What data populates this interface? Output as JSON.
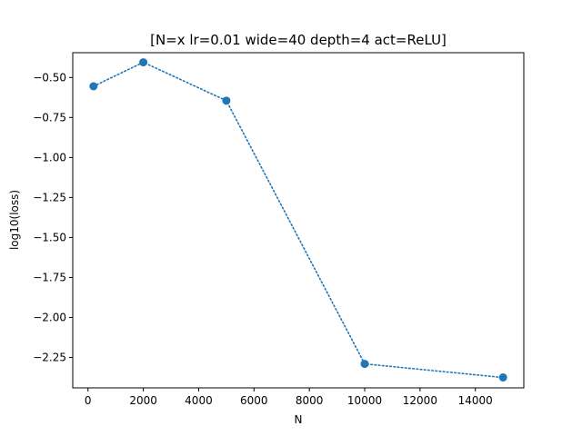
{
  "chart_data": {
    "type": "line",
    "title": "[N=x lr=0.01 wide=40 depth=4 act=ReLU]",
    "xlabel": "N",
    "ylabel": "log10(loss)",
    "xlim": [
      -550,
      15750
    ],
    "ylim": [
      -2.44,
      -0.345
    ],
    "xticks": [
      0,
      2000,
      4000,
      6000,
      8000,
      10000,
      12000,
      14000
    ],
    "xtick_labels": [
      "0",
      "2000",
      "4000",
      "6000",
      "8000",
      "10000",
      "12000",
      "14000"
    ],
    "yticks": [
      -0.5,
      -0.75,
      -1.0,
      -1.25,
      -1.5,
      -1.75,
      -2.0,
      -2.25
    ],
    "ytick_labels": [
      "−0.50",
      "−0.75",
      "−1.00",
      "−1.25",
      "−1.50",
      "−1.75",
      "−2.00",
      "−2.25"
    ],
    "grid": false,
    "series": [
      {
        "color": "#1f77b4",
        "line_style": "dotted",
        "marker": "circle",
        "x": [
          200,
          2000,
          5000,
          10000,
          15000
        ],
        "y": [
          -0.555,
          -0.405,
          -0.645,
          -2.29,
          -2.375
        ]
      }
    ]
  }
}
